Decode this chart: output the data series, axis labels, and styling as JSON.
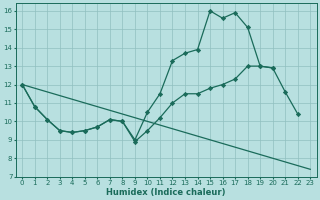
{
  "title": "",
  "xlabel": "Humidex (Indice chaleur)",
  "background_color": "#b8e0e0",
  "grid_color": "#90c0c0",
  "line_color": "#1a6b5a",
  "xlim": [
    -0.5,
    23.5
  ],
  "ylim": [
    7,
    16.4
  ],
  "xticks": [
    0,
    1,
    2,
    3,
    4,
    5,
    6,
    7,
    8,
    9,
    10,
    11,
    12,
    13,
    14,
    15,
    16,
    17,
    18,
    19,
    20,
    21,
    22,
    23
  ],
  "yticks": [
    7,
    8,
    9,
    10,
    11,
    12,
    13,
    14,
    15,
    16
  ],
  "line1_x": [
    0,
    1,
    2,
    3,
    4,
    5,
    6,
    7,
    8,
    9,
    10,
    11,
    12,
    13,
    14,
    15,
    16,
    17,
    18,
    19,
    20,
    21,
    22
  ],
  "line1_y": [
    12.0,
    10.8,
    10.1,
    9.5,
    9.4,
    9.5,
    9.7,
    10.1,
    10.0,
    9.0,
    10.5,
    11.5,
    13.3,
    13.7,
    13.9,
    16.0,
    15.6,
    15.9,
    15.1,
    13.0,
    12.9,
    11.6,
    10.4
  ],
  "line2_x": [
    0,
    1,
    2,
    3,
    4,
    5,
    6,
    7,
    8,
    9,
    10,
    11,
    12,
    13,
    14,
    15,
    16,
    17,
    18,
    19,
    20
  ],
  "line2_y": [
    12.0,
    10.8,
    10.1,
    9.5,
    9.4,
    9.5,
    9.7,
    10.1,
    10.0,
    8.9,
    9.5,
    10.2,
    11.0,
    11.5,
    11.5,
    11.8,
    12.0,
    12.3,
    13.0,
    13.0,
    12.9
  ],
  "line3_x": [
    0,
    23
  ],
  "line3_y": [
    12.0,
    7.4
  ]
}
